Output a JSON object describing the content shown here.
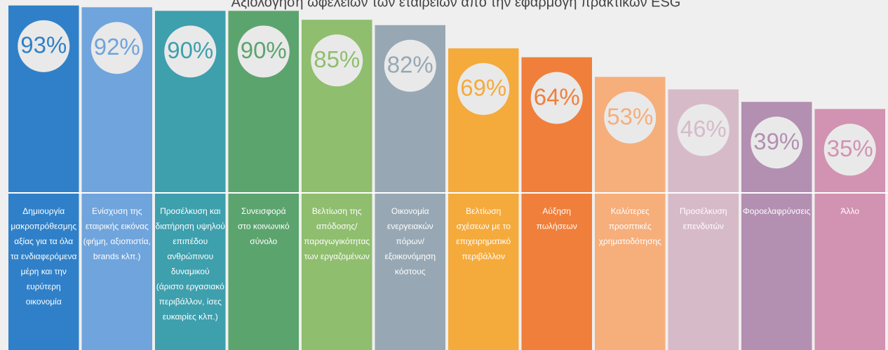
{
  "chart_data": {
    "type": "bar",
    "title": "Αξιολόγηση ωφελειών των εταιρειών από την εφαρμογή πρακτικών ESG",
    "categories": [
      [
        "Δημιουργία",
        "μακροπρόθεσμης",
        "αξίας για τα όλα",
        "τα ενδιαφερόμενα",
        "μέρη και την",
        "ευρύτερη",
        "οικονομία"
      ],
      [
        "Ενίσχυση της",
        "εταιρικής εικόνας",
        "(φήμη, αξιοπιστία,",
        "brands κλπ.)"
      ],
      [
        "Προσέλκυση και",
        "διατήρηση υψηλού",
        "επιπέδου",
        "ανθρώπινου",
        "δυναμικού",
        "(άριστο εργασιακό",
        "περιβάλλον, ίσες",
        "ευκαιρίες κλπ.)"
      ],
      [
        "Συνεισφορά",
        "στο κοινωνικό",
        "σύνολο"
      ],
      [
        "Βελτίωση της",
        "απόδοσης/",
        "παραγωγικότητας",
        "των εργαζομένων"
      ],
      [
        "Οικονομία",
        "ενεργειακών",
        "πόρων/",
        "εξοικονόμηση",
        "κόστους"
      ],
      [
        "Βελτίωση",
        "σχέσεων με το",
        "επιχειρηματικό",
        "περιβάλλον"
      ],
      [
        "Αύξηση",
        "πωλήσεων"
      ],
      [
        "Καλύτερες",
        "προοπτικές",
        "χρηματοδότησης"
      ],
      [
        "Προσέλκυση",
        "επενδυτών"
      ],
      [
        "Φοροελαφρύνσεις"
      ],
      [
        "Άλλο"
      ]
    ],
    "values": [
      93,
      92,
      90,
      90,
      85,
      82,
      69,
      64,
      53,
      46,
      39,
      35
    ],
    "value_labels": [
      "93%",
      "92%",
      "90%",
      "90%",
      "85%",
      "82%",
      "69%",
      "64%",
      "53%",
      "46%",
      "39%",
      "35%"
    ],
    "colors": [
      "#2f80c8",
      "#6fa4dc",
      "#3e9fad",
      "#5ca46e",
      "#8fbe6e",
      "#97a8b4",
      "#f5aa3c",
      "#ef7f3b",
      "#f6ae7b",
      "#d7bac8",
      "#b38fb1",
      "#d292b1"
    ],
    "ylim": [
      -100,
      100
    ]
  }
}
